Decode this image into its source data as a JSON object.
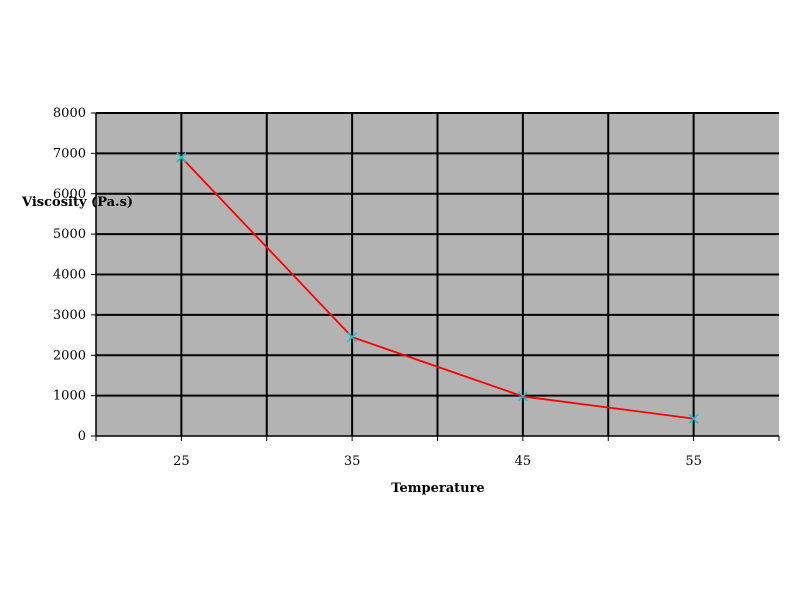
{
  "chart_data": {
    "type": "line",
    "title": "",
    "xlabel": "Temperature",
    "ylabel": "Viscosity (Pa.s)",
    "categories": [
      "25",
      "35",
      "45",
      "55"
    ],
    "x_tick_labels": [
      "25",
      "35",
      "45",
      "55"
    ],
    "y_tick_labels": [
      "0",
      "1000",
      "2000",
      "3000",
      "4000",
      "5000",
      "6000",
      "7000",
      "8000"
    ],
    "ylim": [
      0,
      8000
    ],
    "grid": true,
    "legend": "none",
    "series": [
      {
        "values": [
          6900,
          2450,
          980,
          430
        ]
      }
    ],
    "colors": {
      "plot_background": "#b3b3b3",
      "grid": "#000000",
      "line": "#ff0000",
      "marker": "#00cccc"
    }
  }
}
